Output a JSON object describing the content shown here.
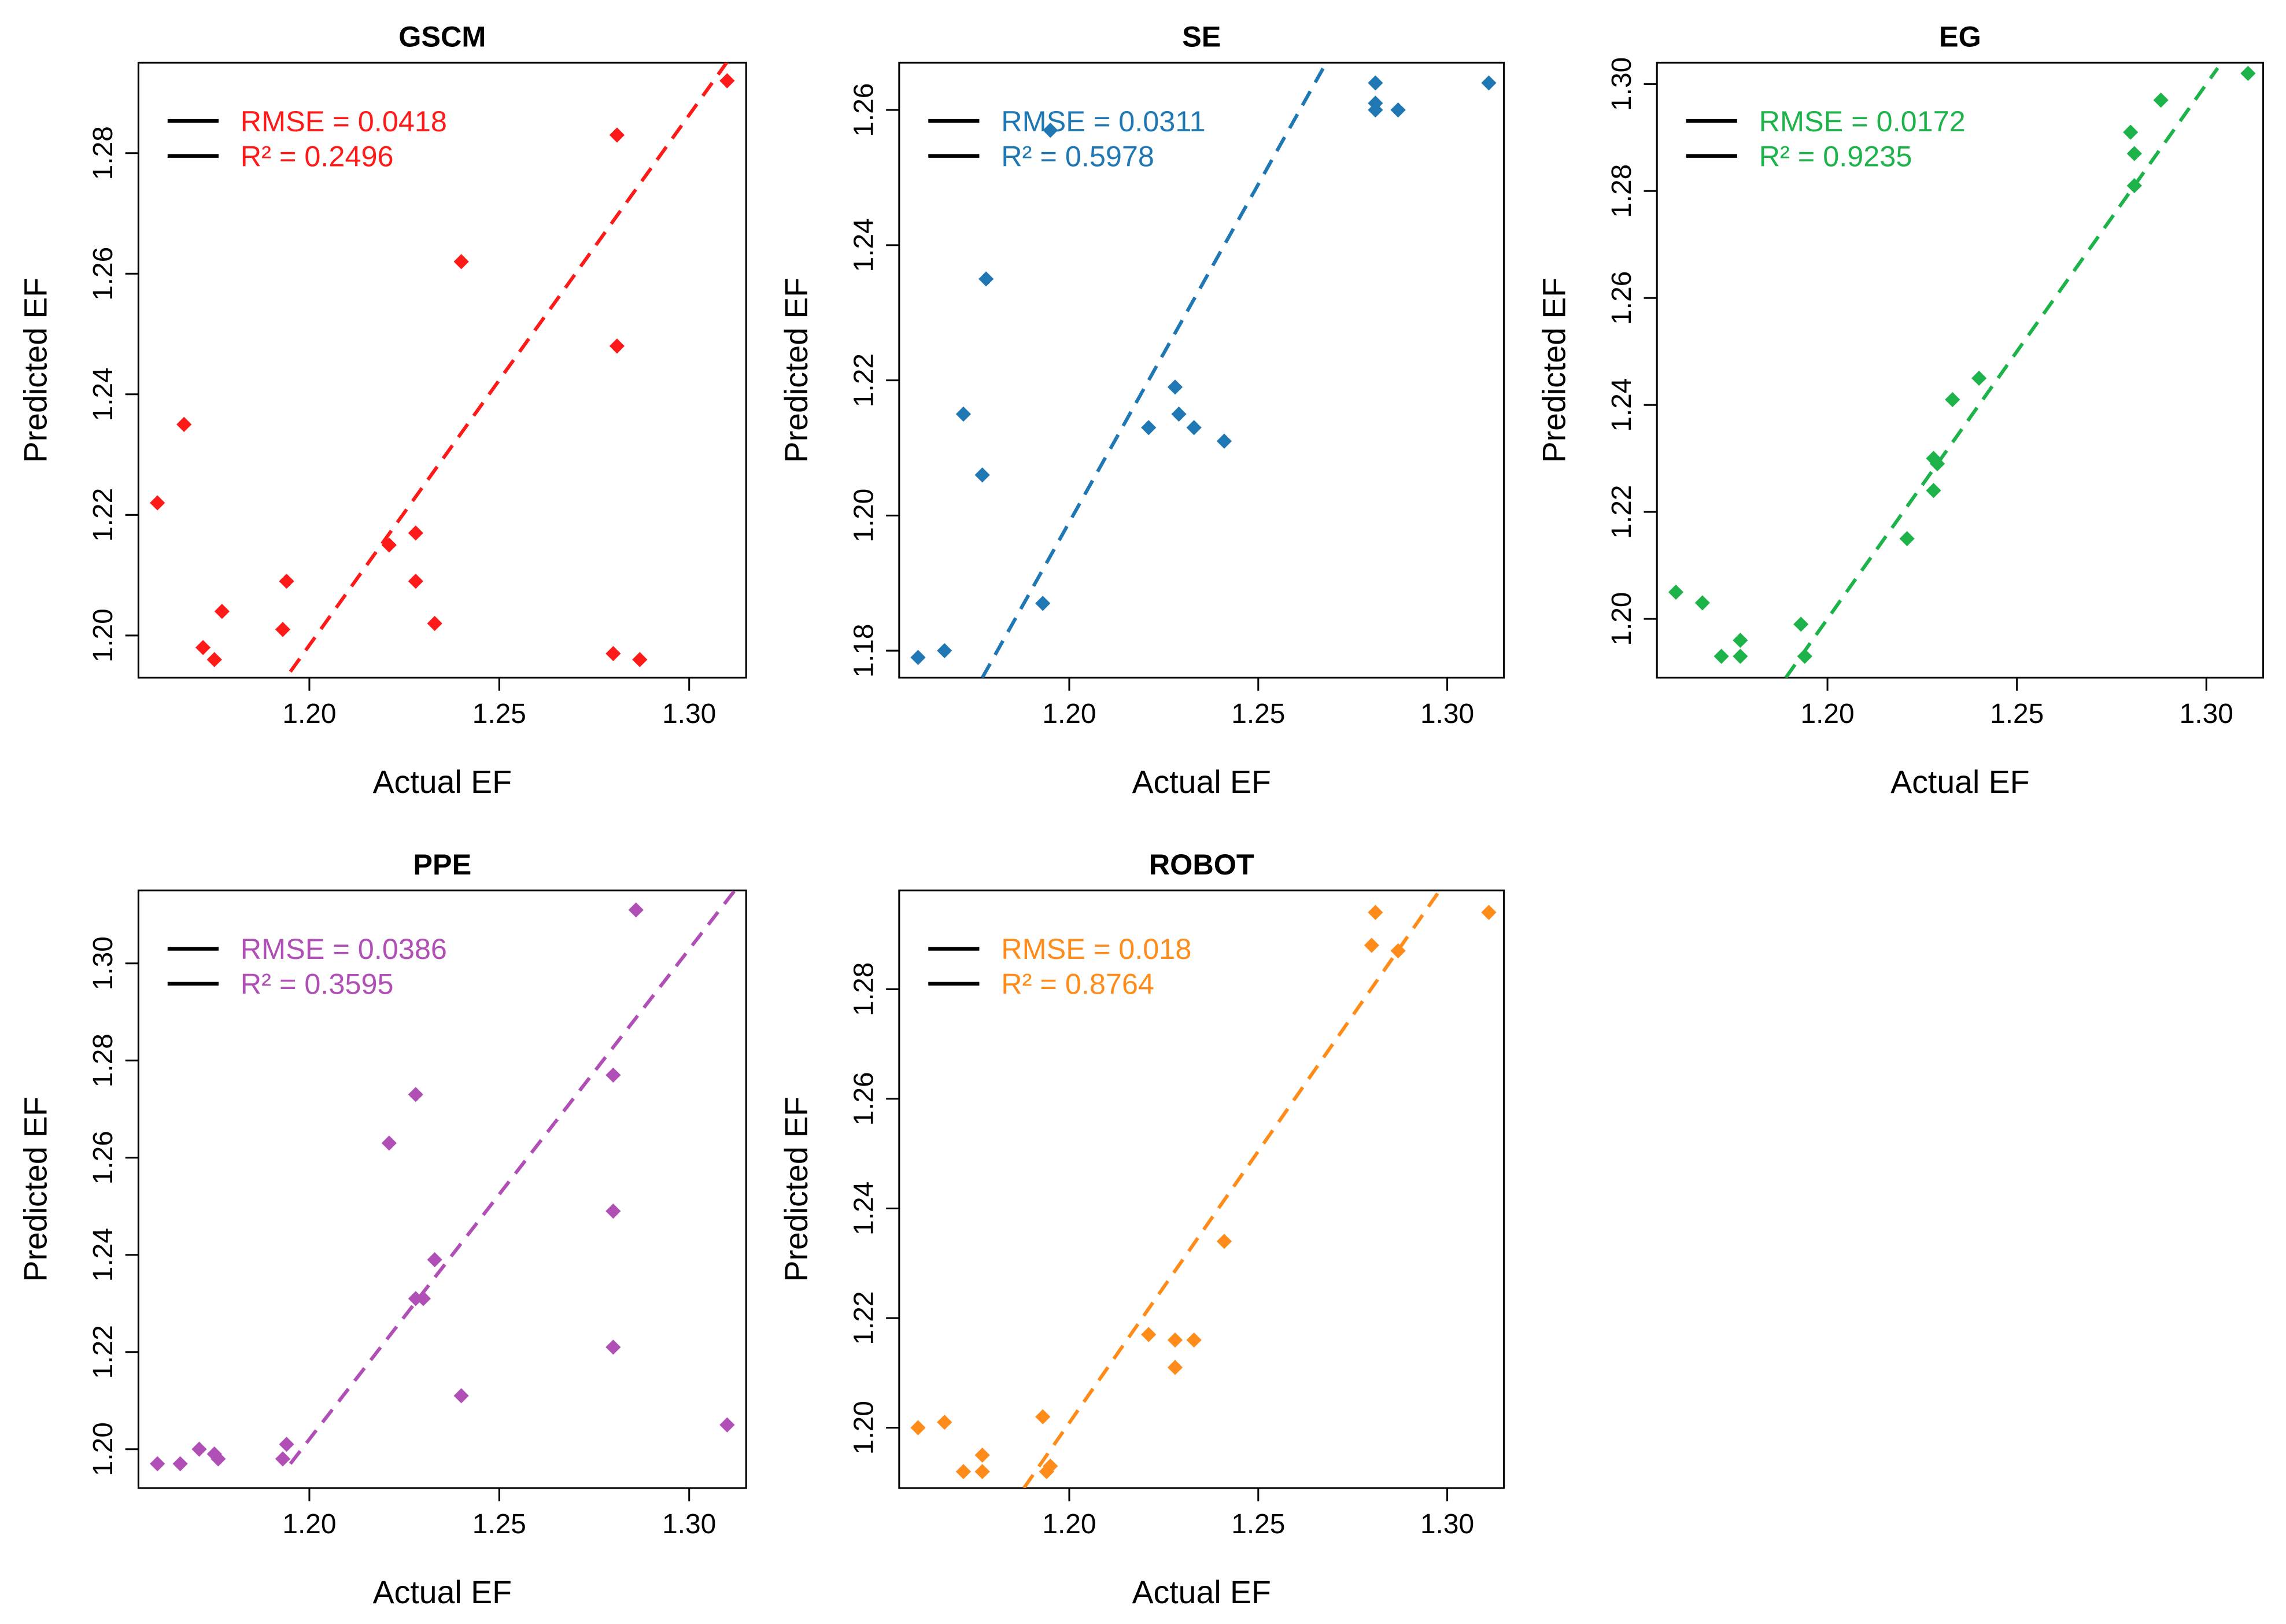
{
  "chart_data": [
    {
      "type": "scatter",
      "title": "GSCM",
      "xlabel": "Actual EF",
      "ylabel": "Predicted EF",
      "color": "#ff1a1a",
      "xlim": [
        1.155,
        1.315
      ],
      "ylim": [
        1.193,
        1.295
      ],
      "xticks": [
        "1.20",
        "1.25",
        "1.30"
      ],
      "yticks": [
        "1.20",
        "1.22",
        "1.24",
        "1.26",
        "1.28"
      ],
      "legend": {
        "position": "top-left",
        "rmse_label": "RMSE = 0.0418",
        "r2_label": "R² = 0.2496"
      },
      "fit_line": {
        "x1": 1.195,
        "y1": 1.194,
        "x2": 1.311,
        "y2": 1.296
      },
      "x": [
        1.16,
        1.167,
        1.172,
        1.175,
        1.177,
        1.193,
        1.194,
        1.221,
        1.228,
        1.228,
        1.233,
        1.24,
        1.28,
        1.281,
        1.281,
        1.287,
        1.31
      ],
      "y": [
        1.222,
        1.235,
        1.198,
        1.196,
        1.204,
        1.201,
        1.209,
        1.215,
        1.209,
        1.217,
        1.202,
        1.262,
        1.197,
        1.283,
        1.248,
        1.196,
        1.292
      ]
    },
    {
      "type": "scatter",
      "title": "SE",
      "xlabel": "Actual EF",
      "ylabel": "Predicted EF",
      "color": "#1f78b4",
      "xlim": [
        1.155,
        1.315
      ],
      "ylim": [
        1.176,
        1.267
      ],
      "xticks": [
        "1.20",
        "1.25",
        "1.30"
      ],
      "yticks": [
        "1.18",
        "1.20",
        "1.22",
        "1.24",
        "1.26"
      ],
      "legend": {
        "position": "top-left",
        "rmse_label": "RMSE = 0.0311",
        "r2_label": "R² = 0.5978"
      },
      "fit_line": {
        "x1": 1.177,
        "y1": 1.176,
        "x2": 1.268,
        "y2": 1.267
      },
      "x": [
        1.16,
        1.167,
        1.172,
        1.177,
        1.178,
        1.193,
        1.195,
        1.221,
        1.228,
        1.229,
        1.233,
        1.241,
        1.281,
        1.281,
        1.281,
        1.287,
        1.311
      ],
      "y": [
        1.179,
        1.18,
        1.215,
        1.206,
        1.235,
        1.187,
        1.257,
        1.213,
        1.219,
        1.215,
        1.213,
        1.211,
        1.264,
        1.261,
        1.26,
        1.26,
        1.264
      ]
    },
    {
      "type": "scatter",
      "title": "EG",
      "xlabel": "Actual EF",
      "ylabel": "Predicted EF",
      "color": "#1db34a",
      "xlim": [
        1.155,
        1.315
      ],
      "ylim": [
        1.189,
        1.304
      ],
      "xticks": [
        "1.20",
        "1.25",
        "1.30"
      ],
      "yticks": [
        "1.20",
        "1.22",
        "1.24",
        "1.26",
        "1.28",
        "1.30"
      ],
      "legend": {
        "position": "top-left",
        "rmse_label": "RMSE = 0.0172",
        "r2_label": "R² = 0.9235"
      },
      "fit_line": {
        "x1": 1.189,
        "y1": 1.189,
        "x2": 1.303,
        "y2": 1.303
      },
      "x": [
        1.16,
        1.167,
        1.172,
        1.177,
        1.177,
        1.193,
        1.194,
        1.221,
        1.228,
        1.228,
        1.229,
        1.233,
        1.24,
        1.28,
        1.281,
        1.281,
        1.288,
        1.311
      ],
      "y": [
        1.205,
        1.203,
        1.193,
        1.193,
        1.196,
        1.199,
        1.193,
        1.215,
        1.224,
        1.23,
        1.229,
        1.241,
        1.245,
        1.291,
        1.287,
        1.281,
        1.297,
        1.302
      ]
    },
    {
      "type": "scatter",
      "title": "PPE",
      "xlabel": "Actual EF",
      "ylabel": "Predicted EF",
      "color": "#b04fb5",
      "xlim": [
        1.155,
        1.315
      ],
      "ylim": [
        1.192,
        1.315
      ],
      "xticks": [
        "1.20",
        "1.25",
        "1.30"
      ],
      "yticks": [
        "1.20",
        "1.22",
        "1.24",
        "1.26",
        "1.28",
        "1.30"
      ],
      "legend": {
        "position": "top-left",
        "rmse_label": "RMSE = 0.0386",
        "r2_label": "R² = 0.3595"
      },
      "fit_line": {
        "x1": 1.195,
        "y1": 1.197,
        "x2": 1.312,
        "y2": 1.315
      },
      "x": [
        1.16,
        1.166,
        1.171,
        1.175,
        1.176,
        1.193,
        1.194,
        1.221,
        1.228,
        1.228,
        1.23,
        1.233,
        1.24,
        1.28,
        1.28,
        1.28,
        1.286,
        1.31
      ],
      "y": [
        1.197,
        1.197,
        1.2,
        1.199,
        1.198,
        1.198,
        1.201,
        1.263,
        1.273,
        1.231,
        1.231,
        1.239,
        1.211,
        1.277,
        1.249,
        1.221,
        1.311,
        1.205
      ]
    },
    {
      "type": "scatter",
      "title": "ROBOT",
      "xlabel": "Actual EF",
      "ylabel": "Predicted EF",
      "color": "#ff8c1a",
      "xlim": [
        1.155,
        1.315
      ],
      "ylim": [
        1.189,
        1.298
      ],
      "xticks": [
        "1.20",
        "1.25",
        "1.30"
      ],
      "yticks": [
        "1.20",
        "1.22",
        "1.24",
        "1.26",
        "1.28"
      ],
      "legend": {
        "position": "top-left",
        "rmse_label": "RMSE = 0.018",
        "r2_label": "R² = 0.8764"
      },
      "fit_line": {
        "x1": 1.188,
        "y1": 1.189,
        "x2": 1.298,
        "y2": 1.298
      },
      "x": [
        1.16,
        1.167,
        1.172,
        1.177,
        1.177,
        1.193,
        1.194,
        1.195,
        1.221,
        1.228,
        1.228,
        1.233,
        1.241,
        1.28,
        1.281,
        1.287,
        1.311
      ],
      "y": [
        1.2,
        1.201,
        1.192,
        1.195,
        1.192,
        1.202,
        1.192,
        1.193,
        1.217,
        1.211,
        1.216,
        1.216,
        1.234,
        1.288,
        1.294,
        1.287,
        1.294
      ]
    }
  ]
}
